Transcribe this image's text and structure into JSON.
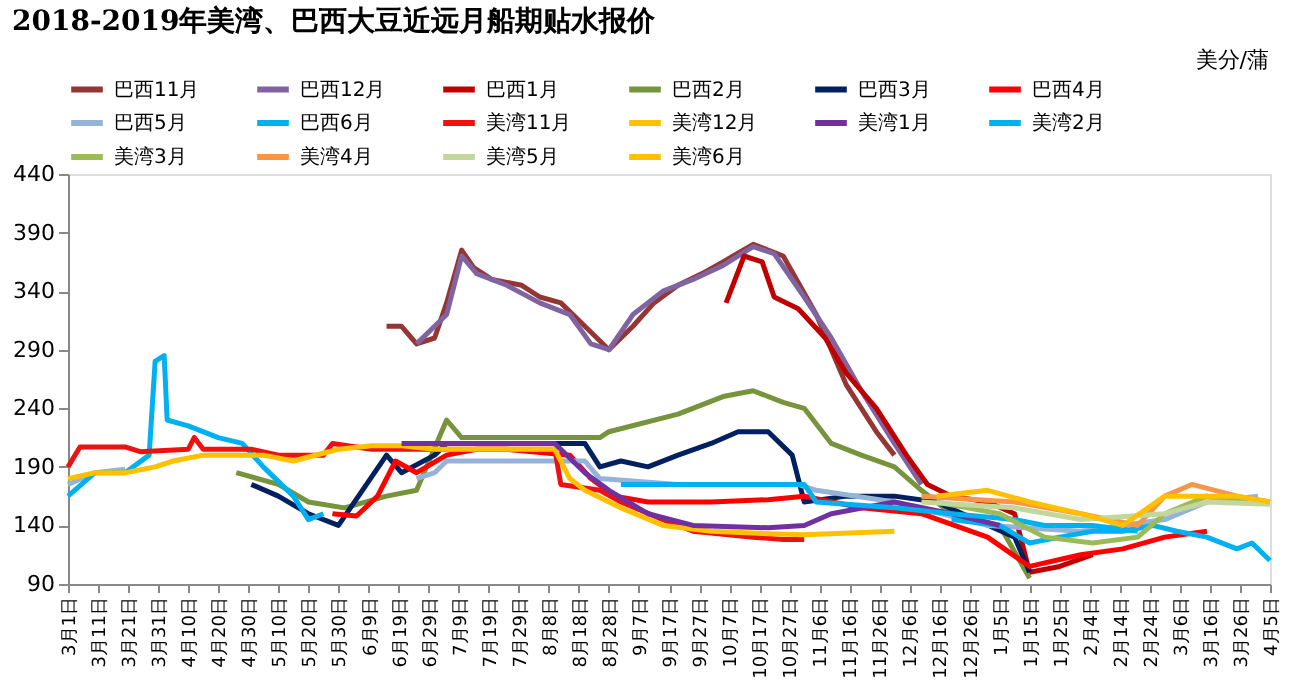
{
  "chart_data": {
    "type": "line",
    "title": "2018-2019年美湾、巴西大豆近远月船期贴水报价",
    "ylabel": "美分/蒲",
    "legend": "top",
    "xlim": [
      "2018-03-01",
      "2019-04-05"
    ],
    "xticks": [
      {
        "value": "2018-03-01",
        "label": "3月1日"
      },
      {
        "value": "2018-03-11",
        "label": "3月11日"
      },
      {
        "value": "2018-03-21",
        "label": "3月21日"
      },
      {
        "value": "2018-03-31",
        "label": "3月31日"
      },
      {
        "value": "2018-04-10",
        "label": "4月10日"
      },
      {
        "value": "2018-04-20",
        "label": "4月20日"
      },
      {
        "value": "2018-04-30",
        "label": "4月30日"
      },
      {
        "value": "2018-05-10",
        "label": "5月10日"
      },
      {
        "value": "2018-05-20",
        "label": "5月20日"
      },
      {
        "value": "2018-05-30",
        "label": "5月30日"
      },
      {
        "value": "2018-06-09",
        "label": "6月9日"
      },
      {
        "value": "2018-06-19",
        "label": "6月19日"
      },
      {
        "value": "2018-06-29",
        "label": "6月29日"
      },
      {
        "value": "2018-07-09",
        "label": "7月9日"
      },
      {
        "value": "2018-07-19",
        "label": "7月19日"
      },
      {
        "value": "2018-07-29",
        "label": "7月29日"
      },
      {
        "value": "2018-08-08",
        "label": "8月8日"
      },
      {
        "value": "2018-08-18",
        "label": "8月18日"
      },
      {
        "value": "2018-08-28",
        "label": "8月28日"
      },
      {
        "value": "2018-09-07",
        "label": "9月7日"
      },
      {
        "value": "2018-09-17",
        "label": "9月17日"
      },
      {
        "value": "2018-09-27",
        "label": "9月27日"
      },
      {
        "value": "2018-10-07",
        "label": "10月7日"
      },
      {
        "value": "2018-10-17",
        "label": "10月17日"
      },
      {
        "value": "2018-10-27",
        "label": "10月27日"
      },
      {
        "value": "2018-11-06",
        "label": "11月6日"
      },
      {
        "value": "2018-11-16",
        "label": "11月16日"
      },
      {
        "value": "2018-11-26",
        "label": "11月26日"
      },
      {
        "value": "2018-12-06",
        "label": "12月6日"
      },
      {
        "value": "2018-12-16",
        "label": "12月16日"
      },
      {
        "value": "2018-12-26",
        "label": "12月26日"
      },
      {
        "value": "2019-01-05",
        "label": "1月5日"
      },
      {
        "value": "2019-01-15",
        "label": "1月15日"
      },
      {
        "value": "2019-01-25",
        "label": "1月25日"
      },
      {
        "value": "2019-02-04",
        "label": "2月4日"
      },
      {
        "value": "2019-02-14",
        "label": "2月14日"
      },
      {
        "value": "2019-02-24",
        "label": "2月24日"
      },
      {
        "value": "2019-03-06",
        "label": "3月6日"
      },
      {
        "value": "2019-03-16",
        "label": "3月16日"
      },
      {
        "value": "2019-03-26",
        "label": "3月26日"
      },
      {
        "value": "2019-04-05",
        "label": "4月5日"
      }
    ],
    "ylim": [
      90,
      440
    ],
    "yticks": [
      90,
      140,
      190,
      240,
      290,
      340,
      390,
      440
    ],
    "series": [
      {
        "name": "巴西11月",
        "color": "#943634",
        "x": [
          "2018-06-15",
          "2018-06-20",
          "2018-06-25",
          "2018-07-01",
          "2018-07-05",
          "2018-07-10",
          "2018-07-14",
          "2018-07-20",
          "2018-07-30",
          "2018-08-05",
          "2018-08-12",
          "2018-08-20",
          "2018-08-28",
          "2018-09-05",
          "2018-09-12",
          "2018-09-20",
          "2018-09-28",
          "2018-10-05",
          "2018-10-15",
          "2018-10-25",
          "2018-11-05",
          "2018-11-15",
          "2018-11-25",
          "2018-12-01"
        ],
        "values": [
          310,
          310,
          295,
          300,
          330,
          375,
          360,
          350,
          345,
          335,
          330,
          310,
          290,
          310,
          330,
          345,
          355,
          365,
          380,
          370,
          320,
          260,
          220,
          200
        ]
      },
      {
        "name": "巴西12月",
        "color": "#8064a2",
        "x": [
          "2018-06-25",
          "2018-07-01",
          "2018-07-05",
          "2018-07-10",
          "2018-07-15",
          "2018-07-25",
          "2018-08-05",
          "2018-08-15",
          "2018-08-22",
          "2018-08-28",
          "2018-09-05",
          "2018-09-15",
          "2018-09-25",
          "2018-10-05",
          "2018-10-15",
          "2018-10-22",
          "2018-11-01",
          "2018-11-10",
          "2018-11-20",
          "2018-12-01",
          "2018-12-10"
        ],
        "values": [
          295,
          310,
          320,
          370,
          355,
          345,
          330,
          320,
          295,
          290,
          320,
          340,
          350,
          362,
          378,
          372,
          335,
          300,
          255,
          210,
          175
        ]
      },
      {
        "name": "巴西1月",
        "color": "#c00000",
        "x": [
          "2018-10-06",
          "2018-10-12",
          "2018-10-18",
          "2018-10-22",
          "2018-10-30",
          "2018-11-08",
          "2018-11-15",
          "2018-11-25",
          "2018-12-05",
          "2018-12-12",
          "2018-12-20",
          "2019-01-01",
          "2019-01-10",
          "2019-01-15",
          "2019-01-25",
          "2019-02-05"
        ],
        "values": [
          330,
          370,
          365,
          335,
          325,
          300,
          270,
          240,
          200,
          175,
          165,
          160,
          150,
          100,
          105,
          115
        ]
      },
      {
        "name": "巴西2月",
        "color": "#77933c",
        "x": [
          "2018-04-26",
          "2018-05-10",
          "2018-05-20",
          "2018-06-01",
          "2018-06-15",
          "2018-06-25",
          "2018-07-05",
          "2018-07-10",
          "2018-08-25",
          "2018-08-28",
          "2018-09-20",
          "2018-10-05",
          "2018-10-15",
          "2018-10-25",
          "2018-11-01",
          "2018-11-10",
          "2018-11-20",
          "2018-12-01",
          "2018-12-10",
          "2018-12-20",
          "2019-01-05",
          "2019-01-15"
        ],
        "values": [
          185,
          175,
          160,
          155,
          165,
          170,
          230,
          215,
          215,
          220,
          235,
          250,
          255,
          245,
          240,
          210,
          200,
          190,
          170,
          150,
          140,
          95
        ]
      },
      {
        "name": "巴西3月",
        "color": "#002060",
        "x": [
          "2018-05-01",
          "2018-05-10",
          "2018-05-20",
          "2018-05-30",
          "2018-06-15",
          "2018-06-20",
          "2018-07-01",
          "2018-07-05",
          "2018-08-20",
          "2018-08-25",
          "2018-09-01",
          "2018-09-10",
          "2018-09-20",
          "2018-10-01",
          "2018-10-10",
          "2018-10-20",
          "2018-10-28",
          "2018-11-01",
          "2018-11-15",
          "2018-12-01",
          "2018-12-15",
          "2019-01-10",
          "2019-01-15"
        ],
        "values": [
          175,
          165,
          150,
          140,
          200,
          185,
          200,
          210,
          210,
          190,
          195,
          190,
          200,
          210,
          220,
          220,
          200,
          160,
          165,
          165,
          160,
          130,
          100
        ]
      },
      {
        "name": "巴西4月",
        "color": "#ff0000",
        "x": [
          "2018-05-28",
          "2018-06-05",
          "2018-06-12",
          "2018-06-18",
          "2018-06-25",
          "2018-07-05",
          "2018-07-15",
          "2018-07-25",
          "2018-08-15",
          "2018-08-22",
          "2018-08-30",
          "2018-09-10",
          "2018-10-01",
          "2018-10-20",
          "2018-11-01",
          "2018-11-20",
          "2018-12-10",
          "2019-01-01",
          "2019-01-15",
          "2019-02-01",
          "2019-02-15",
          "2019-03-01",
          "2019-03-15"
        ],
        "values": [
          150,
          148,
          165,
          195,
          185,
          200,
          205,
          205,
          200,
          180,
          165,
          160,
          160,
          162,
          165,
          155,
          150,
          130,
          105,
          115,
          120,
          130,
          135
        ]
      },
      {
        "name": "巴西5月",
        "color": "#95b3d7",
        "x": [
          "2018-03-01",
          "2018-03-10",
          "2018-03-20",
          "2018-06-15",
          "2018-06-25",
          "2018-07-01",
          "2018-07-05",
          "2018-08-20",
          "2018-08-25",
          "2018-09-20",
          "2018-10-30",
          "2018-11-05",
          "2018-12-01",
          "2019-01-01",
          "2019-02-01",
          "2019-03-01",
          "2019-03-15",
          "2019-04-01"
        ],
        "values": [
          175,
          185,
          188,
          null,
          180,
          185,
          195,
          195,
          180,
          175,
          175,
          170,
          160,
          140,
          135,
          145,
          160,
          165
        ]
      },
      {
        "name": "巴西6月",
        "color": "#00b0f0",
        "x": [
          "2018-03-01",
          "2018-03-10",
          "2018-03-20",
          "2018-03-28",
          "2018-03-30",
          "2018-04-02",
          "2018-04-03",
          "2018-04-10",
          "2018-04-20",
          "2018-04-28",
          "2018-05-05",
          "2018-05-15",
          "2018-05-20",
          "2018-05-25",
          "2018-12-05",
          "2018-12-20",
          "2019-01-05",
          "2019-01-15",
          "2019-01-25",
          "2019-02-05",
          "2019-02-15",
          "2019-02-25",
          "2019-03-05",
          "2019-03-15",
          "2019-03-25",
          "2019-03-30",
          "2019-04-05"
        ],
        "values": [
          165,
          185,
          185,
          200,
          280,
          285,
          230,
          225,
          215,
          210,
          190,
          165,
          145,
          150,
          null,
          145,
          140,
          125,
          130,
          135,
          135,
          140,
          135,
          130,
          120,
          125,
          110
        ]
      },
      {
        "name": "美湾11月",
        "color": "#ee1111",
        "x": [
          "2018-03-01",
          "2018-03-05",
          "2018-03-20",
          "2018-03-25",
          "2018-04-10",
          "2018-04-12",
          "2018-04-15",
          "2018-05-01",
          "2018-05-10",
          "2018-05-25",
          "2018-05-28",
          "2018-06-10",
          "2018-07-01",
          "2018-08-10",
          "2018-08-12",
          "2018-08-25",
          "2018-09-01",
          "2018-09-15",
          "2018-09-25",
          "2018-10-15",
          "2018-10-25",
          "2018-11-01"
        ],
        "values": [
          190,
          207,
          207,
          203,
          205,
          215,
          205,
          205,
          200,
          200,
          210,
          205,
          205,
          205,
          175,
          170,
          160,
          145,
          135,
          130,
          128,
          128
        ]
      },
      {
        "name": "美湾12月",
        "color": "#ffc000",
        "x": [
          "2018-03-01",
          "2018-03-10",
          "2018-03-20",
          "2018-03-30",
          "2018-04-05",
          "2018-04-15",
          "2018-04-25",
          "2018-05-05",
          "2018-05-15",
          "2018-05-30",
          "2018-06-10",
          "2018-06-20",
          "2018-07-01",
          "2018-08-10",
          "2018-08-15",
          "2018-08-20",
          "2018-09-01",
          "2018-09-15",
          "2018-10-01",
          "2018-10-20",
          "2018-11-01",
          "2018-12-01"
        ],
        "values": [
          180,
          185,
          185,
          190,
          195,
          200,
          200,
          200,
          195,
          205,
          208,
          208,
          205,
          205,
          180,
          170,
          155,
          140,
          135,
          133,
          132,
          135
        ]
      },
      {
        "name": "美湾1月",
        "color": "#7030a0",
        "x": [
          "2018-06-20",
          "2018-08-10",
          "2018-08-20",
          "2018-08-28",
          "2018-09-10",
          "2018-09-25",
          "2018-10-20",
          "2018-11-01",
          "2018-11-10",
          "2018-12-01",
          "2018-12-20",
          "2019-01-05"
        ],
        "values": [
          210,
          210,
          185,
          170,
          150,
          140,
          138,
          140,
          150,
          160,
          150,
          140
        ]
      },
      {
        "name": "美湾2月",
        "color": "#00b0f0",
        "x": [
          "2018-09-01",
          "2018-11-01",
          "2018-11-05",
          "2018-12-01",
          "2018-12-20",
          "2019-01-10",
          "2019-01-20",
          "2019-02-05",
          "2019-02-20"
        ],
        "values": [
          175,
          175,
          160,
          155,
          150,
          145,
          140,
          140,
          135
        ]
      },
      {
        "name": "美湾3月",
        "color": "#9bbb59",
        "x": [
          "2018-12-15",
          "2019-01-05",
          "2019-01-20",
          "2019-02-05",
          "2019-02-20",
          "2019-03-01",
          "2019-03-15",
          "2019-04-05"
        ],
        "values": [
          160,
          150,
          130,
          125,
          130,
          150,
          165,
          160
        ]
      },
      {
        "name": "美湾4月",
        "color": "#f79646",
        "x": [
          "2018-12-10",
          "2019-01-10",
          "2019-02-01",
          "2019-02-20",
          "2019-03-01",
          "2019-03-10",
          "2019-03-25",
          "2019-04-05"
        ],
        "values": [
          165,
          160,
          150,
          140,
          165,
          175,
          165,
          160
        ]
      },
      {
        "name": "美湾5月",
        "color": "#c3d69b",
        "x": [
          "2018-12-10",
          "2019-01-10",
          "2019-02-01",
          "2019-03-01",
          "2019-03-15",
          "2019-04-05"
        ],
        "values": [
          160,
          155,
          145,
          150,
          160,
          158
        ]
      },
      {
        "name": "美湾6月",
        "color": "#ffc000",
        "x": [
          "2018-12-15",
          "2019-01-01",
          "2019-01-15",
          "2019-02-01",
          "2019-02-15",
          "2019-03-01",
          "2019-03-10",
          "2019-03-25",
          "2019-04-05"
        ],
        "values": [
          165,
          170,
          160,
          150,
          140,
          165,
          165,
          165,
          160
        ]
      }
    ]
  }
}
